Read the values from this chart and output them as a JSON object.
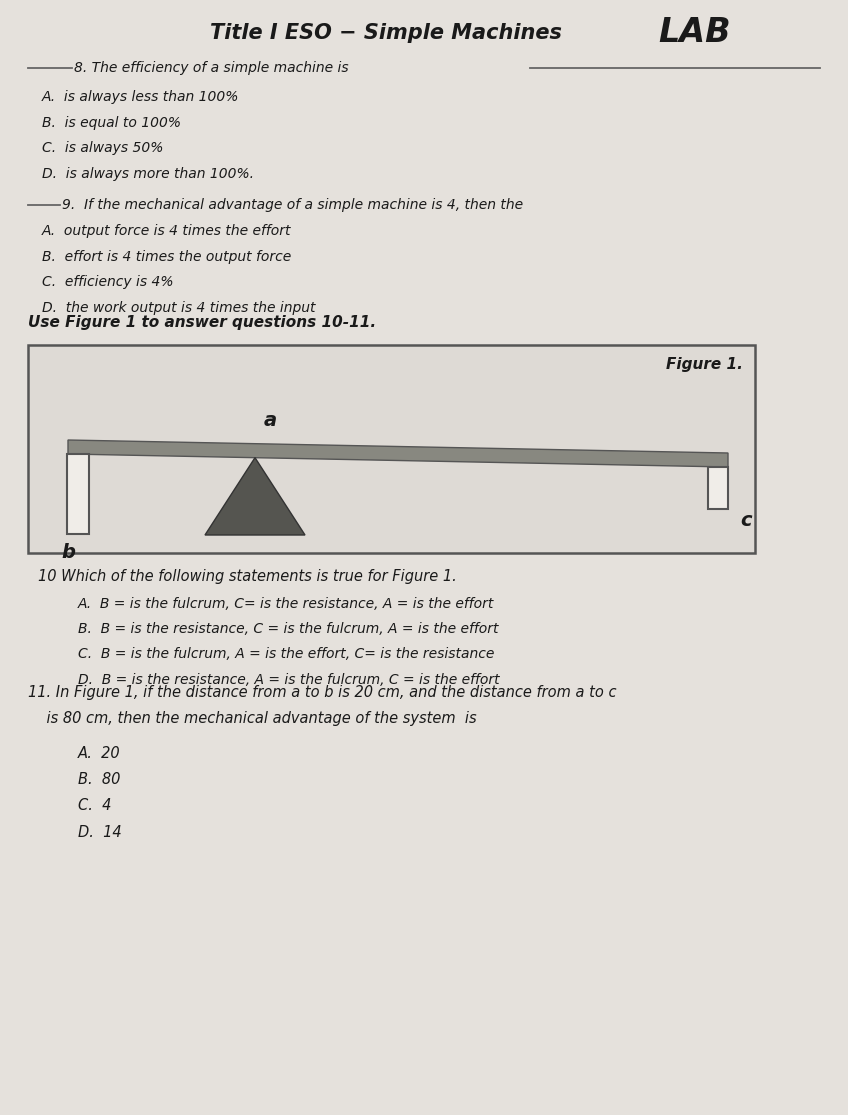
{
  "bg_color": "#e5e1dc",
  "fig_bg": "#dedad5",
  "title_normal": "Title I ESO − Simple Machines ",
  "title_lab": "LAB",
  "q8_label": "8. The efficiency of a simple machine is",
  "q8_options": [
    "A.  is always less than 100%",
    "B.  is equal to 100%",
    "C.  is always 50%",
    "D.  is always more than 100%."
  ],
  "q9_label": "9.  If the mechanical advantage of a simple machine is 4, then the",
  "q9_options": [
    "A.  output force is 4 times the effort",
    "B.  effort is 4 times the output force",
    "C.  efficiency is 4%",
    "D.  the work output is 4 times the input"
  ],
  "fig_header": "Use Figure 1 to answer questions 10-11.",
  "fig_title": "Figure 1.",
  "q10_label": "10 Which of the following statements is true for Figure 1.",
  "q10_options": [
    "A.  B = is the fulcrum, C= is the resistance, A = is the effort",
    "B.  B = is the resistance, C = is the fulcrum, A = is the effort",
    "C.  B = is the fulcrum, A = is the effort, C= is the resistance",
    "D.  B = is the resistance, A = is the fulcrum, C = is the effort"
  ],
  "q11_label": "11. In Figure 1, if the distance from a to b is 20 cm, and the distance from a to c",
  "q11_label2": "    is 80 cm, then the mechanical advantage of the system  is",
  "q11_options": [
    "A.  20",
    "B.  80",
    "C.  4",
    "D.  14"
  ],
  "text_color": "#1a1a1a",
  "line_color": "#666666",
  "beam_color": "#888880",
  "triangle_color": "#555550",
  "weight_color": "#f0ede8"
}
